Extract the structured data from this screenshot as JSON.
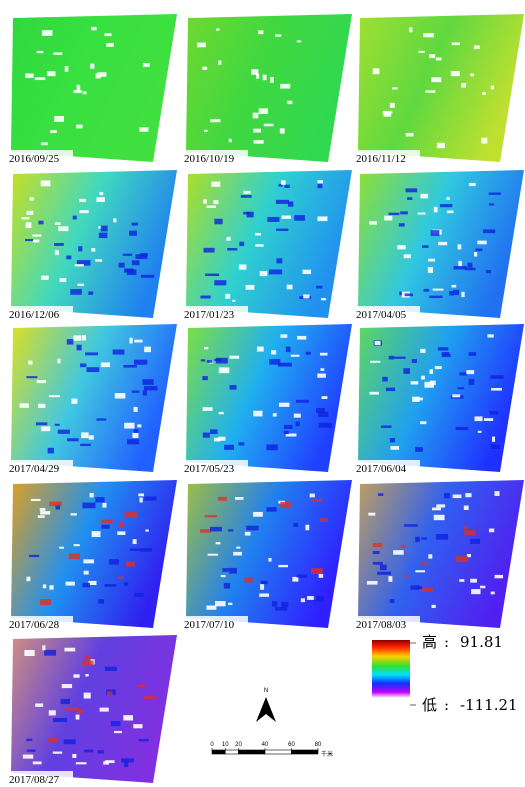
{
  "panels": [
    {
      "date": "2016/09/25"
    },
    {
      "date": "2016/10/19"
    },
    {
      "date": "2016/11/12"
    },
    {
      "date": "2016/12/06"
    },
    {
      "date": "2017/01/23"
    },
    {
      "date": "2017/04/05"
    },
    {
      "date": "2017/04/29"
    },
    {
      "date": "2017/05/23"
    },
    {
      "date": "2017/06/04"
    },
    {
      "date": "2017/06/28"
    },
    {
      "date": "2017/07/10"
    },
    {
      "date": "2017/08/03"
    },
    {
      "date": "2017/08/27"
    }
  ],
  "north_arrow": {
    "label": "N"
  },
  "scale_bar": {
    "ticks": [
      0,
      10,
      20,
      40,
      60,
      80
    ],
    "unit": "千米"
  },
  "legend": {
    "high": {
      "label": "高",
      "separator": ":",
      "value": 91.81
    },
    "low": {
      "label": "低",
      "separator": ":",
      "value": -111.21
    }
  }
}
